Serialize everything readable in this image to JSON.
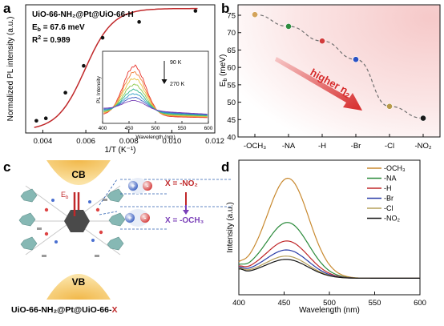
{
  "panels": {
    "a": {
      "letter": "a"
    },
    "b": {
      "letter": "b"
    },
    "c": {
      "letter": "c"
    },
    "d": {
      "letter": "d"
    }
  },
  "colors": {
    "fit_line": "#c0282a",
    "point": "#111111",
    "arrow": "#d62a2a",
    "dashed": "#707070"
  },
  "chart_data": [
    {
      "id": "a",
      "type": "scatter",
      "xlabel": "1/T (K⁻¹)",
      "ylabel": "Normalized PL intensity (a.u.)",
      "xlim": [
        0.0032,
        0.012
      ],
      "ylim": [
        0,
        1.05
      ],
      "xticks": [
        "0.004",
        "0.006",
        "0.008",
        "0.010",
        "0.012"
      ],
      "annotations": {
        "sample": "UiO-66-NH₂@Pt@UiO-66-H",
        "eb": "E",
        "eb_sub": "b",
        "eb_val": " = 67.6 meV",
        "r2": "R",
        "r2_sup": "2",
        "r2_val": " = 0.989"
      },
      "points": [
        {
          "x": 0.0037,
          "y": 0.1
        },
        {
          "x": 0.00414,
          "y": 0.12
        },
        {
          "x": 0.00505,
          "y": 0.33
        },
        {
          "x": 0.0059,
          "y": 0.55
        },
        {
          "x": 0.00678,
          "y": 0.78
        },
        {
          "x": 0.00848,
          "y": 0.91
        },
        {
          "x": 0.0111,
          "y": 1.0
        }
      ],
      "fit": {
        "A": 1.0,
        "k": 3.1,
        "x0": 0.00596
      }
    },
    {
      "id": "a-inset",
      "type": "line",
      "xlabel": "Wavelength (nm)",
      "ylabel": "PL Intensity",
      "xlim": [
        400,
        600
      ],
      "xticks": [
        "400",
        "450",
        "500",
        "550",
        "600"
      ],
      "temps": {
        "top": "90 K",
        "bottom": "270 K"
      },
      "peak_wavelength": 460,
      "series": [
        {
          "color": "#e8352c",
          "amp": 1.0
        },
        {
          "color": "#f0803a",
          "amp": 0.86
        },
        {
          "color": "#e8c23e",
          "amp": 0.72
        },
        {
          "color": "#8ec94b",
          "amp": 0.58
        },
        {
          "color": "#2fb489",
          "amp": 0.46
        },
        {
          "color": "#33a0c8",
          "amp": 0.36
        },
        {
          "color": "#4062c4",
          "amp": 0.27
        },
        {
          "color": "#7b45b8",
          "amp": 0.19
        }
      ]
    },
    {
      "id": "b",
      "type": "scatter",
      "ylabel": "E",
      "ylabel_sub": "b",
      "ylabel_unit": " (meV)",
      "ylim": [
        40,
        78
      ],
      "yticks": [
        40,
        45,
        50,
        55,
        60,
        65,
        70,
        75
      ],
      "categories": [
        "-OCH₃",
        "-NA",
        "-H",
        "-Br",
        "-Cl",
        "-NO₂"
      ],
      "values": [
        75.2,
        71.8,
        67.6,
        62.3,
        48.8,
        45.4
      ],
      "point_colors": [
        "#d4a35a",
        "#2e8b3e",
        "#d23b3b",
        "#2a52c4",
        "#b89a4a",
        "#1a1a1a"
      ],
      "arrow_label": "higher η",
      "arrow_label_sub": "2"
    },
    {
      "id": "d",
      "type": "line",
      "xlabel": "Wavelength (nm)",
      "ylabel": "Intensity (a.u.)",
      "xlim": [
        400,
        600
      ],
      "xticks": [
        "400",
        "450",
        "500",
        "550",
        "600"
      ],
      "legend_position": "top-right",
      "series": [
        {
          "name": "-OCH₃",
          "color": "#c8892f",
          "amp": 1.0
        },
        {
          "name": "-NA",
          "color": "#2a8a3a",
          "amp": 0.54
        },
        {
          "name": "-H",
          "color": "#c0282a",
          "amp": 0.35
        },
        {
          "name": "-Br",
          "color": "#2b3ea8",
          "amp": 0.26
        },
        {
          "name": "-Cl",
          "color": "#b6a05a",
          "amp": 0.2
        },
        {
          "name": "-NO₂",
          "color": "#151515",
          "amp": 0.17
        }
      ]
    }
  ],
  "schematic": {
    "cb": "CB",
    "vb": "VB",
    "eb": "E",
    "eb_sub": "b",
    "x_top": "X = -NO₂",
    "x_bottom": "X = -OCH₃",
    "plus": "+",
    "minus": "-",
    "caption_main": "UiO-66-NH₂@Pt@UiO-66-",
    "caption_x": "X"
  }
}
